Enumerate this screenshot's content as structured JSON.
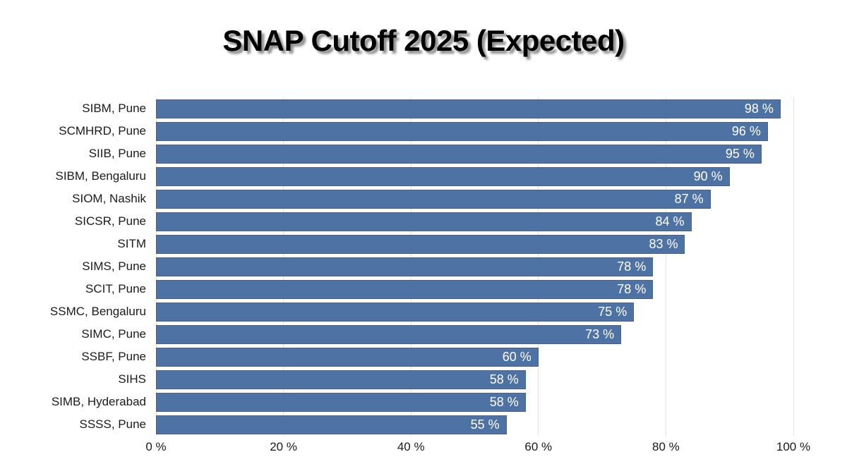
{
  "title": "SNAP Cutoff 2025 (Expected)",
  "colors": {
    "bar_fill": "#4e72a4",
    "bar_border": "#40628f",
    "gridline": "#e3e3e3",
    "label_text": "#1b1b1b",
    "value_text": "#ffffff",
    "title_text": "#000000",
    "background": "#ffffff"
  },
  "chart_data": {
    "type": "bar",
    "orientation": "horizontal",
    "title": "SNAP Cutoff 2025 (Expected)",
    "xlabel": "",
    "ylabel": "",
    "xlim": [
      0,
      100
    ],
    "grid": "vertical",
    "legend": "none",
    "value_suffix": " %",
    "categories": [
      "SIBM, Pune",
      "SCMHRD, Pune",
      "SIIB, Pune",
      "SIBM, Bengaluru",
      "SIOM, Nashik",
      "SICSR, Pune",
      "SITM",
      "SIMS, Pune",
      "SCIT, Pune",
      "SSMC, Bengaluru",
      "SIMC, Pune",
      "SSBF, Pune",
      "SIHS",
      "SIMB, Hyderabad",
      "SSSS, Pune"
    ],
    "values": [
      98,
      96,
      95,
      90,
      87,
      84,
      83,
      78,
      78,
      75,
      73,
      60,
      58,
      58,
      55
    ],
    "x_ticks": [
      {
        "label": "0 %",
        "value": 0
      },
      {
        "label": "20 %",
        "value": 20
      },
      {
        "label": "40 %",
        "value": 40
      },
      {
        "label": "60 %",
        "value": 60
      },
      {
        "label": "80 %",
        "value": 80
      },
      {
        "label": "100 %",
        "value": 100
      }
    ]
  }
}
